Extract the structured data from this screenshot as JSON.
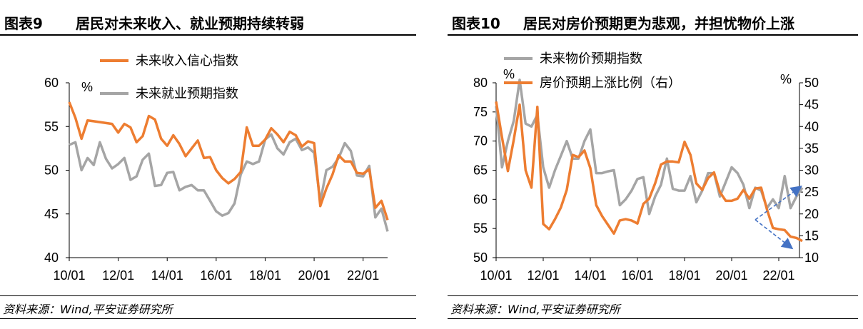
{
  "colors": {
    "orange": "#ED7D31",
    "gray": "#A5A5A5",
    "arrow": "#4472C4",
    "axis": "#000000"
  },
  "charts": [
    {
      "fig_no": "图表9",
      "title": "居民对未来收入、就业预期持续转弱",
      "source": "资料来源：Wind,平安证券研究所",
      "chart_data": {
        "type": "line",
        "title": "居民对未来收入、就业预期持续转弱",
        "xlabel": "",
        "ylabel": "%",
        "ylim": [
          40,
          60
        ],
        "yticks": [
          40,
          45,
          50,
          55,
          60
        ],
        "xticks": [
          "10/01",
          "12/01",
          "14/01",
          "16/01",
          "18/01",
          "20/01",
          "22/01"
        ],
        "grid": false,
        "legend": "top-left",
        "x_start": "2010-01",
        "frequency": "quarterly",
        "series": [
          {
            "name": "未来收入信心指数",
            "color": "orange",
            "values": [
              57.8,
              56.0,
              53.6,
              55.7,
              55.6,
              55.5,
              55.4,
              55.3,
              54.3,
              55.3,
              54.9,
              53.2,
              53.9,
              56.2,
              55.8,
              53.6,
              52.8,
              54.0,
              53.0,
              51.6,
              52.5,
              53.4,
              51.4,
              51.5,
              50.0,
              49.1,
              48.5,
              49.0,
              49.8,
              54.9,
              52.8,
              52.8,
              53.5,
              54.8,
              54.1,
              53.2,
              54.4,
              54.0,
              52.7,
              53.3,
              53.1,
              45.9,
              47.9,
              49.5,
              51.7,
              51.0,
              51.0,
              49.7,
              49.6,
              50.1,
              45.7,
              46.5,
              44.3
            ]
          },
          {
            "name": "未来就业预期指数",
            "color": "gray",
            "values": [
              52.9,
              53.2,
              50.0,
              51.4,
              50.6,
              53.2,
              51.3,
              50.2,
              50.7,
              51.4,
              48.9,
              49.3,
              51.2,
              51.9,
              48.2,
              48.3,
              49.7,
              49.8,
              47.7,
              48.1,
              48.3,
              47.7,
              47.7,
              46.5,
              45.3,
              44.8,
              45.1,
              46.2,
              49.5,
              51.0,
              50.7,
              51.0,
              53.5,
              54.1,
              52.5,
              51.8,
              53.2,
              53.6,
              52.3,
              52.6,
              52.0,
              46.4,
              50.0,
              50.4,
              51.4,
              53.1,
              52.2,
              49.4,
              49.3,
              50.5,
              44.6,
              45.6,
              43.0
            ]
          }
        ]
      }
    },
    {
      "fig_no": "图表10",
      "title": "居民对房价预期更为悲观，并担忧物价上涨",
      "source": "资料来源：Wind,平安证券研究所",
      "chart_data": {
        "type": "line",
        "title": "居民对房价预期更为悲观，并担忧物价上涨",
        "xlabel": "",
        "ylabel": "%",
        "ylabel_right": "%",
        "ylim": [
          50,
          80
        ],
        "yticks": [
          50,
          55,
          60,
          65,
          70,
          75,
          80
        ],
        "ylim_right": [
          10,
          50
        ],
        "yticks_right": [
          10,
          15,
          20,
          25,
          30,
          35,
          40,
          45,
          50
        ],
        "xticks": [
          "10/01",
          "12/01",
          "14/01",
          "16/01",
          "18/01",
          "20/01",
          "22/01"
        ],
        "grid": false,
        "legend": "top-left",
        "x_start": "2010-01",
        "frequency": "quarterly",
        "series": [
          {
            "name": "未来物价预期指数",
            "axis": "left",
            "color": "gray",
            "values": [
              76.0,
              65.5,
              70.0,
              73.5,
              80.5,
              73.0,
              72.5,
              74.5,
              65.5,
              62.0,
              65.0,
              67.5,
              70.0,
              67.0,
              67.0,
              70.0,
              72.0,
              64.5,
              64.5,
              64.8,
              65.0,
              59.0,
              60.0,
              61.5,
              63.5,
              63.8,
              57.5,
              60.5,
              62.5,
              67.0,
              61.8,
              61.5,
              61.5,
              64.0,
              59.5,
              61.5,
              64.5,
              64.5,
              60.5,
              63.0,
              65.5,
              64.5,
              62.5,
              58.5,
              62.0,
              61.5,
              58.5,
              60.0,
              58.5,
              64.0,
              58.5,
              60.5,
              62.0
            ]
          },
          {
            "name": "房价预期上涨比例（右）",
            "axis": "right",
            "color": "orange",
            "values": [
              45.7,
              37.5,
              29.8,
              37.0,
              45.0,
              30.0,
              26.0,
              44.5,
              17.7,
              16.5,
              18.8,
              21.5,
              25.5,
              33.5,
              33.0,
              34.5,
              30.5,
              22.0,
              19.5,
              17.5,
              15.5,
              18.5,
              18.8,
              18.5,
              17.8,
              22.3,
              23.5,
              27.0,
              31.3,
              32.0,
              32.0,
              31.8,
              36.5,
              33.5,
              27.0,
              25.5,
              28.2,
              29.5,
              25.0,
              23.0,
              23.0,
              23.5,
              25.5,
              23.5,
              25.8,
              26.0,
              21.0,
              16.8,
              16.5,
              16.3,
              14.8,
              14.5,
              13.8
            ]
          }
        ],
        "annotations": [
          {
            "type": "arrow",
            "note": "divergence arrows"
          }
        ]
      }
    }
  ]
}
